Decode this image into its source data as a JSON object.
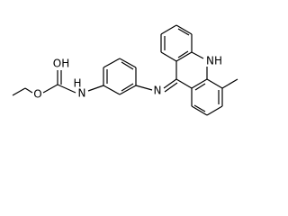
{
  "atoms": {
    "hydroxyl": "OH",
    "ester_oxygen": "O",
    "amide_h": "H",
    "amide_n": "N",
    "imine_n": "N",
    "ring_nh": "NH"
  }
}
